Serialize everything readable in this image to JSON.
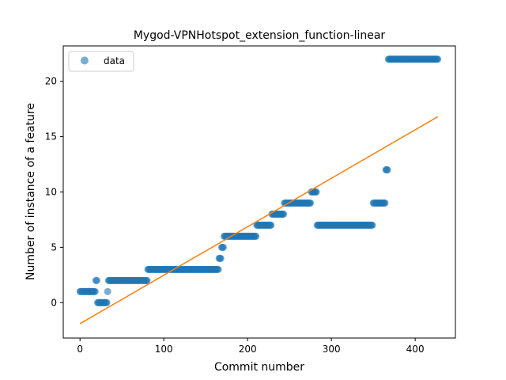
{
  "chart_data": {
    "type": "scatter",
    "title": "Mygod-VPNHotspot_extension_function-linear",
    "xlabel": "Commit number",
    "ylabel": "Number of instance of a feature",
    "xlim": [
      -20,
      448
    ],
    "ylim": [
      -3.2,
      23.2
    ],
    "xticks": [
      0,
      100,
      200,
      300,
      400
    ],
    "yticks": [
      0,
      5,
      10,
      15,
      20
    ],
    "grid": false,
    "legend": "top-left",
    "colors": {
      "data": "#1f77b4",
      "fit": "#ff7f0e"
    },
    "series": [
      {
        "name": "data",
        "kind": "points",
        "segments": [
          {
            "x_start": 0,
            "x_end": 18,
            "y": 1
          },
          {
            "x_start": 19,
            "x_end": 20,
            "y": 2
          },
          {
            "x_start": 21,
            "x_end": 32,
            "y": 0
          },
          {
            "x_start": 33,
            "x_end": 33,
            "y": 1
          },
          {
            "x_start": 34,
            "x_end": 80,
            "y": 2
          },
          {
            "x_start": 81,
            "x_end": 165,
            "y": 3
          },
          {
            "x_start": 166,
            "x_end": 168,
            "y": 4
          },
          {
            "x_start": 169,
            "x_end": 171,
            "y": 5
          },
          {
            "x_start": 172,
            "x_end": 210,
            "y": 6
          },
          {
            "x_start": 211,
            "x_end": 228,
            "y": 7
          },
          {
            "x_start": 229,
            "x_end": 243,
            "y": 8
          },
          {
            "x_start": 244,
            "x_end": 275,
            "y": 9
          },
          {
            "x_start": 276,
            "x_end": 282,
            "y": 10
          },
          {
            "x_start": 283,
            "x_end": 349,
            "y": 7
          },
          {
            "x_start": 350,
            "x_end": 364,
            "y": 9
          },
          {
            "x_start": 365,
            "x_end": 367,
            "y": 12
          },
          {
            "x_start": 368,
            "x_end": 427,
            "y": 22
          }
        ]
      },
      {
        "kind": "line",
        "x": [
          0,
          427
        ],
        "y": [
          -1.9,
          16.8
        ]
      }
    ]
  }
}
